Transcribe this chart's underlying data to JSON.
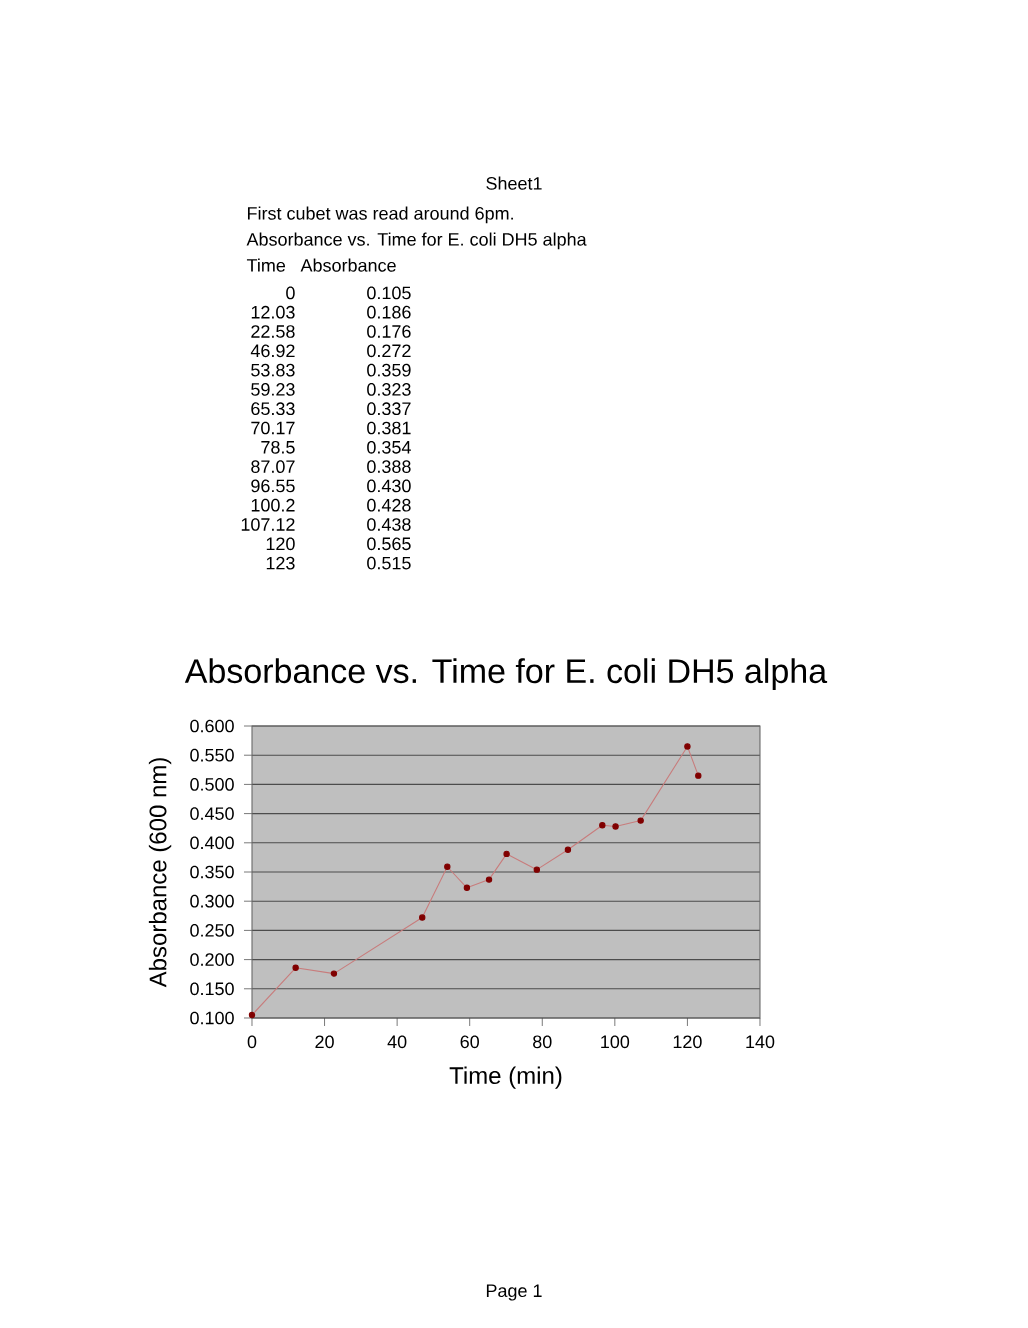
{
  "chart_data": [
    {
      "type": "other",
      "annotations": [
        "Sheet1",
        "First cubet was read around 6pm.",
        "Absorbance vs. Time for E. coli DH5 alpha",
        "Time",
        "Absorbance",
        "0",
        "0.105",
        "12.03",
        "0.186",
        "22.58",
        "0.176",
        "46.92",
        "0.272",
        "53.83",
        "0.359",
        "59.23",
        "0.323",
        "65.33",
        "0.337",
        "70.17",
        "0.381",
        "78.5",
        "0.354",
        "87.07",
        "0.388",
        "96.55",
        "0.430",
        "100.2",
        "0.428",
        "107.12",
        "0.438",
        "120",
        "0.565",
        "123",
        "0.515",
        "Page 1"
      ]
    },
    {
      "type": "line",
      "title": "Absorbance vs. Time for E. coli DH5 alpha",
      "xlabel": "Time (min)",
      "ylabel": "Absorbance (600 nm)",
      "x": [
        0,
        12.03,
        22.58,
        46.92,
        53.83,
        59.23,
        65.33,
        70.17,
        78.5,
        87.07,
        96.55,
        100.2,
        107.12,
        120,
        123
      ],
      "values": [
        0.105,
        0.186,
        0.176,
        0.272,
        0.359,
        0.323,
        0.337,
        0.381,
        0.354,
        0.388,
        0.43,
        0.428,
        0.438,
        0.565,
        0.515
      ],
      "color": "#c87c7c",
      "marker": "circle",
      "grid": "y",
      "xlim": [
        0,
        140
      ],
      "xticks": [
        0,
        20,
        40,
        60,
        80,
        100,
        120,
        140
      ],
      "ylim": [
        0.1,
        0.6
      ],
      "yticks": [
        {
          "value": 0.1,
          "label": "0.100"
        },
        {
          "value": 0.15,
          "label": "0.150"
        },
        {
          "value": 0.2,
          "label": "0.200"
        },
        {
          "value": 0.25,
          "label": "0.250"
        },
        {
          "value": 0.3,
          "label": "0.300"
        },
        {
          "value": 0.35,
          "label": "0.350"
        },
        {
          "value": 0.4,
          "label": "0.400"
        },
        {
          "value": 0.45,
          "label": "0.450"
        },
        {
          "value": 0.5,
          "label": "0.500"
        },
        {
          "value": 0.55,
          "label": "0.550"
        },
        {
          "value": 0.6,
          "label": "0.600"
        }
      ]
    }
  ]
}
